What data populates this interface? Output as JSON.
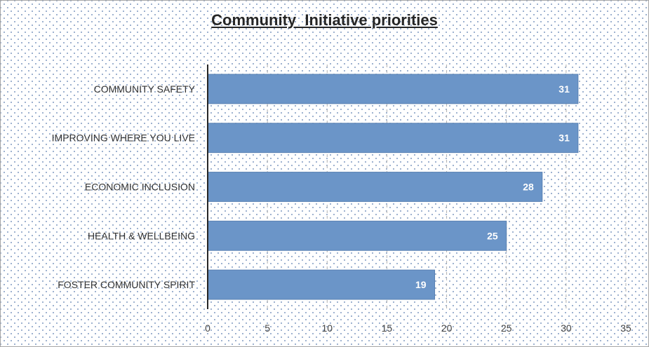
{
  "chart_data": {
    "type": "bar",
    "orientation": "horizontal",
    "title": "Community  Initiative priorities",
    "categories": [
      "COMMUNITY SAFETY",
      "IMPROVING WHERE YOU LIVE",
      "ECONOMIC INCLUSION",
      "HEALTH & WELLBEING",
      "FOSTER COMMUNITY SPIRIT"
    ],
    "values": [
      31,
      31,
      28,
      25,
      19
    ],
    "xlim": [
      0,
      35
    ],
    "ticks": [
      0,
      5,
      10,
      15,
      20,
      25,
      30,
      35
    ],
    "xlabel": "",
    "ylabel": "",
    "grid": true,
    "legend": "none",
    "bar_color": "#6b95c8",
    "bar_border_color": "#5a82b3",
    "axis_color": "#262626",
    "grid_color": "#b0b0b0"
  }
}
